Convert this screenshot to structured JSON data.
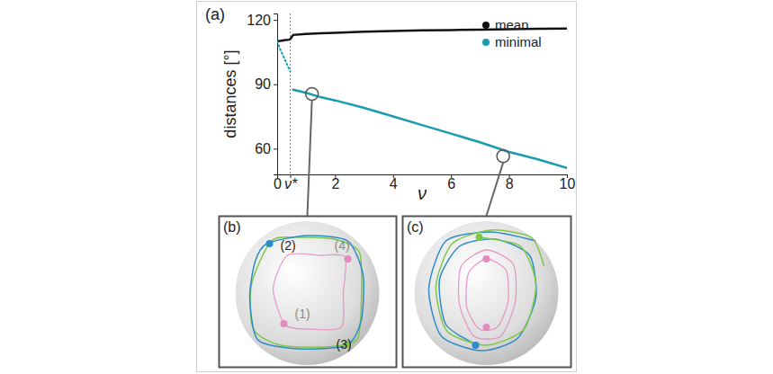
{
  "chart_data": {
    "type": "line",
    "panel_label": "(a)",
    "x_label": "ν",
    "y_label": "distances [°]",
    "x": [
      0,
      0.1,
      0.2,
      0.3,
      0.4,
      0.45,
      0.55,
      1,
      1.5,
      2,
      3,
      4,
      5,
      6,
      7,
      8,
      9,
      10
    ],
    "series": [
      {
        "name": "mean",
        "color": "#111111",
        "line_style": "solid",
        "values": [
          110,
          110.2,
          110.4,
          110.6,
          110.8,
          111,
          113,
          113.5,
          113.8,
          114,
          114.5,
          114.8,
          115.1,
          115.3,
          115.5,
          115.7,
          115.9,
          116
        ]
      },
      {
        "name": "minimal",
        "color": "#1a9bb0",
        "line_style": "solid",
        "values": [
          null,
          null,
          null,
          null,
          null,
          null,
          87.5,
          86,
          84,
          82.5,
          79,
          75,
          71,
          67,
          63,
          58.5,
          55,
          51
        ]
      },
      {
        "name": "minimal",
        "color": "#1a9bb0",
        "line_style": "dotted",
        "values": [
          110,
          106.5,
          103.5,
          100.5,
          97.5,
          96,
          null,
          null,
          null,
          null,
          null,
          null,
          null,
          null,
          null,
          null,
          null,
          null
        ]
      }
    ],
    "xlim": [
      0,
      10
    ],
    "ylim": [
      48,
      123
    ],
    "xticks": [
      0,
      {
        "value": 0.45,
        "label": "ν*"
      },
      2,
      4,
      6,
      8,
      10
    ],
    "yticks": [
      60,
      90,
      120
    ],
    "vlines": [
      0.45
    ],
    "highlights": [
      {
        "x": 1.2,
        "y": 85.5
      },
      {
        "x": 7.8,
        "y": 56.5
      }
    ],
    "legend": "upper right"
  },
  "insets": [
    {
      "panel_label": "(b)",
      "labels": [
        "(1)",
        "(2)",
        "(3)",
        "(4)"
      ]
    },
    {
      "panel_label": "(c)",
      "labels": []
    }
  ]
}
